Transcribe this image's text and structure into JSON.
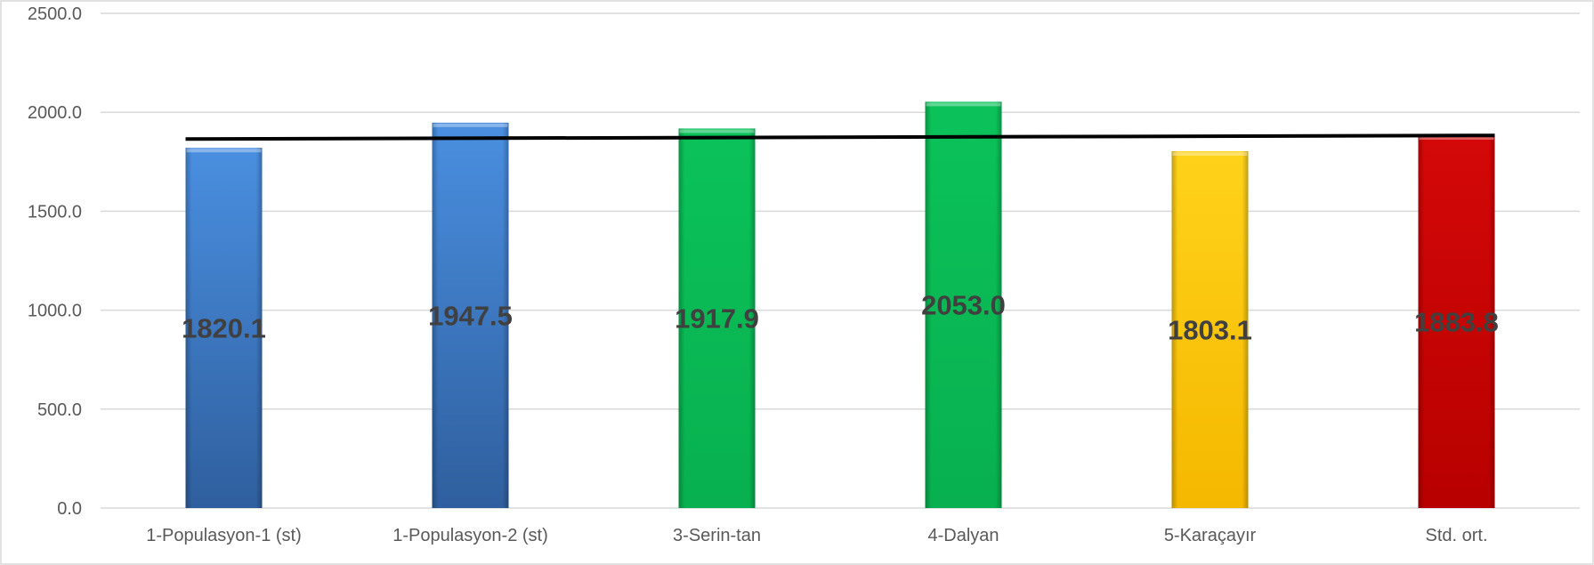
{
  "chart_data": {
    "type": "bar",
    "categories": [
      "1-Populasyon-1 (st)",
      "1-Populasyon-2 (st)",
      "3-Serin-tan",
      "4-Dalyan",
      "5-Karaçayır",
      "Std. ort."
    ],
    "values": [
      1820.1,
      1947.5,
      1917.9,
      2053.0,
      1803.1,
      1883.8
    ],
    "data_labels": [
      "1820.1",
      "1947.5",
      "1917.9",
      "2053.0",
      "1803.1",
      "1883.8"
    ],
    "ylim": [
      0,
      2500
    ],
    "yticks": [
      0,
      500,
      1000,
      1500,
      2000,
      2500
    ],
    "ytick_labels": [
      "0.0",
      "500.0",
      "1000.0",
      "1500.0",
      "2000.0",
      "2500.0"
    ],
    "grid": true,
    "legend": "none",
    "bar_colors": [
      {
        "light": "#4a8fe0",
        "dark": "#2f5f9e"
      },
      {
        "light": "#4a8fe0",
        "dark": "#2f5f9e"
      },
      {
        "light": "#0bc25a",
        "dark": "#08b04f"
      },
      {
        "light": "#0bc25a",
        "dark": "#08b04f"
      },
      {
        "light": "#ffd21a",
        "dark": "#f5b800"
      },
      {
        "light": "#d40808",
        "dark": "#b80000"
      }
    ],
    "trendline": {
      "type": "linear",
      "color": "#000000",
      "start_value": 1865,
      "end_value": 1883
    }
  }
}
